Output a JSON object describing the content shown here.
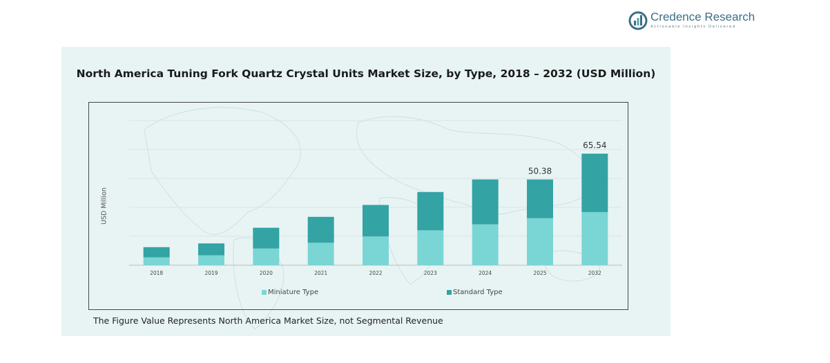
{
  "brand": {
    "name": "Credence Research",
    "tagline": "Actionable Insights Delivered",
    "color": "#3a6f86"
  },
  "chart_title": "North America Tuning Fork Quartz Crystal Units Market Size, by Type, 2018 – 2032 (USD Million)",
  "footnote": "The Figure Value Represents North America Market Size, not Segmental Revenue",
  "chart_data": {
    "type": "bar",
    "stacked": true,
    "title": "North America Tuning Fork Quartz Crystal Units Market Size, by Type, 2018 – 2032 (USD Million)",
    "xlabel": "",
    "ylabel": "USD Million",
    "categories": [
      "2018",
      "2019",
      "2020",
      "2021",
      "2022",
      "2023",
      "2024",
      "2025",
      "2032"
    ],
    "series": [
      {
        "name": "Miniature Type",
        "color": "#79d6d5",
        "values": [
          4.6,
          5.8,
          9.8,
          13.2,
          16.9,
          20.5,
          24.0,
          27.6,
          31.2
        ]
      },
      {
        "name": "Standard Type",
        "color": "#33a3a3",
        "values": [
          6.0,
          7.0,
          12.2,
          15.2,
          18.5,
          22.5,
          26.4,
          22.78,
          34.34
        ]
      }
    ],
    "data_labels": [
      {
        "category": "2025",
        "text": "50.38"
      },
      {
        "category": "2032",
        "text": "65.54"
      }
    ],
    "ylim": [
      0,
      85
    ],
    "grid": true,
    "legend": "bottom"
  }
}
